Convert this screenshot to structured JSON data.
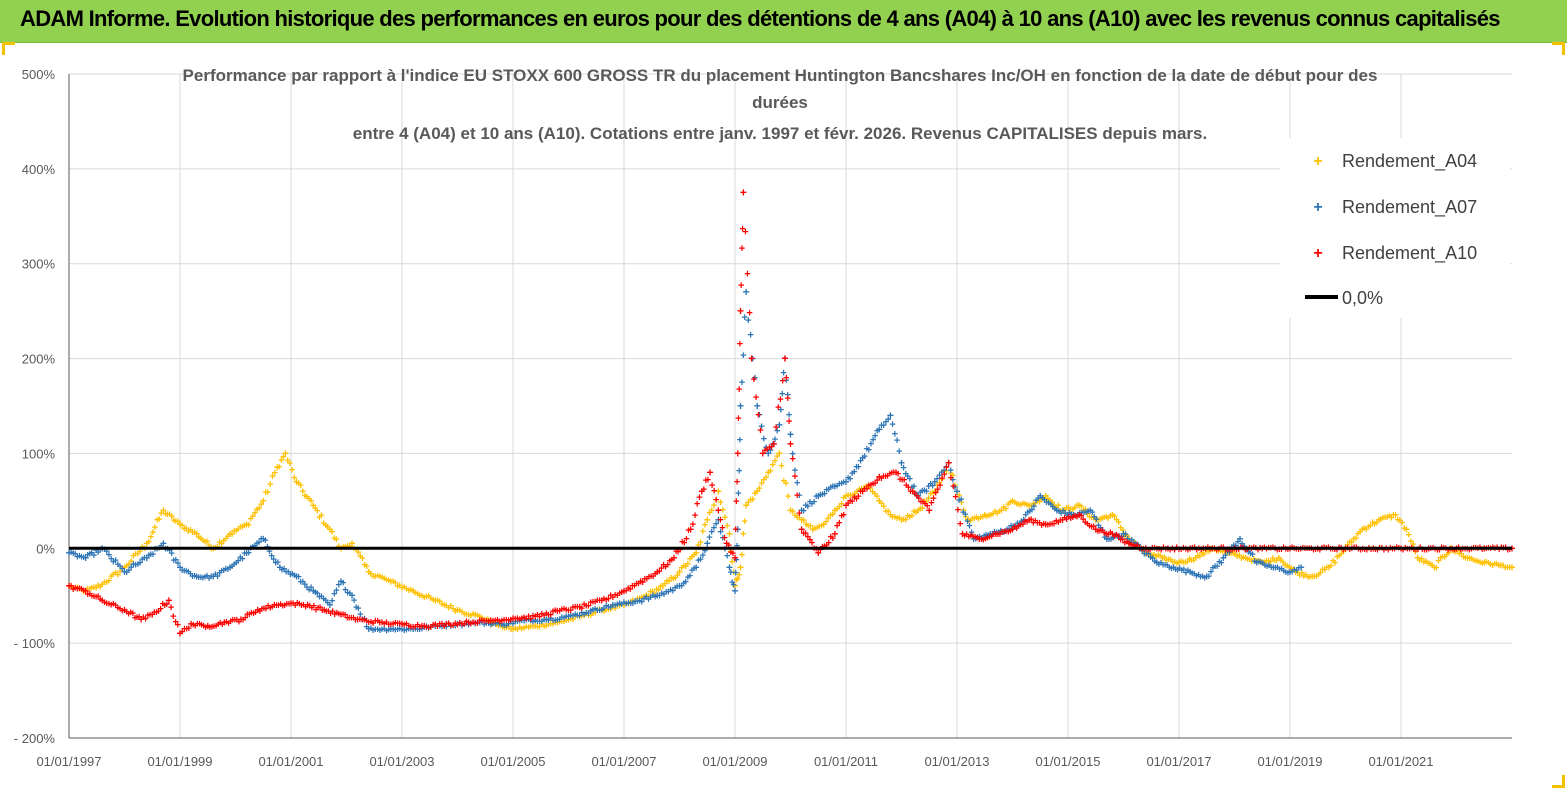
{
  "header": {
    "title": "ADAM Informe. Evolution historique des performances en euros pour des détentions de 4 ans (A04) à 10 ans (A10) avec les revenus connus capitalisés"
  },
  "colors": {
    "header_bg": "#92d050",
    "a04": "#ffc000",
    "a07": "#2e75b6",
    "a10": "#ff0000",
    "zero_line": "#000000",
    "grid": "#d9d9d9"
  },
  "chart_data": {
    "type": "scatter",
    "title_lines": [
      "Performance par rapport à l'indice EU STOXX 600 GROSS TR  du placement Huntington Bancshares Inc/OH en fonction de la date de début pour des",
      "durées",
      "entre 4 (A04) et 10 ans (A10). Cotations entre janv. 1997 et févr. 2026. Revenus CAPITALISES depuis mars."
    ],
    "xlim": [
      1997.0,
      2023.0
    ],
    "ylim": [
      -200,
      500
    ],
    "y_tick_values": [
      -200,
      -100,
      0,
      100,
      200,
      300,
      400,
      500
    ],
    "y_tick_labels": [
      "- 200%",
      "- 100%",
      "0%",
      "100%",
      "200%",
      "300%",
      "400%",
      "500%"
    ],
    "x_tick_values": [
      1997,
      1999,
      2001,
      2003,
      2005,
      2007,
      2009,
      2011,
      2013,
      2015,
      2017,
      2019,
      2021
    ],
    "x_tick_labels": [
      "01/01/1997",
      "01/01/1999",
      "01/01/2001",
      "01/01/2003",
      "01/01/2005",
      "01/01/2007",
      "01/01/2009",
      "01/01/2011",
      "01/01/2013",
      "01/01/2015",
      "01/01/2017",
      "01/01/2019",
      "01/01/2021"
    ],
    "legend": {
      "position": "top-right",
      "entries": [
        "Rendement_A04",
        "Rendement_A07",
        "Rendement_A10",
        "0,0%"
      ]
    },
    "series": [
      {
        "name": "Rendement_A04",
        "color": "#ffc000",
        "x": [
          1997.0,
          1997.3,
          1997.6,
          1998.0,
          1998.4,
          1998.7,
          1999.0,
          1999.3,
          1999.6,
          1999.9,
          2000.2,
          2000.5,
          2000.75,
          2000.9,
          2001.1,
          2001.4,
          2001.7,
          2001.9,
          2002.1,
          2002.4,
          2002.8,
          2003.2,
          2003.6,
          2004.0,
          2004.4,
          2004.7,
          2005.0,
          2005.4,
          2005.8,
          2006.2,
          2006.6,
          2007.0,
          2007.4,
          2007.7,
          2008.0,
          2008.3,
          2008.5,
          2008.7,
          2008.9,
          2009.0,
          2009.1,
          2009.2,
          2009.4,
          2009.6,
          2009.8,
          2010.0,
          2010.2,
          2010.4,
          2010.6,
          2010.8,
          2011.0,
          2011.2,
          2011.4,
          2011.6,
          2011.8,
          2012.0,
          2012.3,
          2012.6,
          2012.85,
          2013.0,
          2013.2,
          2013.5,
          2013.8,
          2014.0,
          2014.3,
          2014.6,
          2014.9,
          2015.2,
          2015.5,
          2015.8,
          2016.1,
          2016.4,
          2016.7,
          2017.0,
          2017.3,
          2017.6,
          2017.9,
          2018.2,
          2018.5,
          2018.8,
          2019.1,
          2019.4,
          2019.7,
          2020.0,
          2020.3,
          2020.6,
          2020.9,
          2021.1,
          2021.3,
          2021.6,
          2021.9,
          2022.2,
          2022.5,
          2022.8,
          2023.0
        ],
        "y": [
          -40,
          -45,
          -38,
          -20,
          5,
          40,
          25,
          15,
          0,
          15,
          25,
          50,
          85,
          100,
          70,
          45,
          20,
          0,
          5,
          -25,
          -35,
          -45,
          -55,
          -65,
          -72,
          -80,
          -85,
          -82,
          -78,
          -72,
          -65,
          -60,
          -50,
          -40,
          -25,
          -5,
          30,
          60,
          15,
          -40,
          -20,
          45,
          60,
          80,
          100,
          40,
          30,
          20,
          25,
          40,
          55,
          60,
          65,
          50,
          35,
          30,
          40,
          60,
          90,
          60,
          30,
          35,
          40,
          50,
          45,
          55,
          40,
          45,
          30,
          35,
          10,
          -5,
          -10,
          -15,
          -10,
          0,
          -5,
          -10,
          -15,
          -10,
          -25,
          -30,
          -20,
          0,
          20,
          30,
          35,
          20,
          -10,
          -20,
          0,
          -10,
          -15,
          -18,
          -20
        ]
      },
      {
        "name": "Rendement_A07",
        "color": "#2e75b6",
        "x": [
          1997.0,
          1997.3,
          1997.6,
          1998.0,
          1998.4,
          1998.7,
          1999.0,
          1999.3,
          1999.6,
          1999.9,
          2000.2,
          2000.5,
          2000.8,
          2001.1,
          2001.4,
          2001.7,
          2001.9,
          2002.1,
          2002.4,
          2002.8,
          2003.2,
          2003.6,
          2004.0,
          2004.4,
          2004.8,
          2005.2,
          2005.6,
          2006.0,
          2006.4,
          2006.8,
          2007.2,
          2007.6,
          2008.0,
          2008.3,
          2008.5,
          2008.7,
          2008.9,
          2009.0,
          2009.05,
          2009.1,
          2009.2,
          2009.4,
          2009.6,
          2009.8,
          2009.9,
          2010.0,
          2010.2,
          2010.5,
          2010.8,
          2011.0,
          2011.3,
          2011.6,
          2011.8,
          2012.0,
          2012.3,
          2012.6,
          2012.85,
          2013.0,
          2013.3,
          2013.6,
          2013.9,
          2014.2,
          2014.5,
          2014.8,
          2015.1,
          2015.4,
          2015.7,
          2016.0,
          2016.3,
          2016.6,
          2016.9,
          2017.2,
          2017.5,
          2017.8,
          2018.1,
          2018.4,
          2018.7,
          2019.0,
          2019.2
        ],
        "y": [
          -5,
          -10,
          0,
          -25,
          -10,
          5,
          -20,
          -30,
          -30,
          -20,
          -5,
          10,
          -20,
          -30,
          -45,
          -60,
          -35,
          -50,
          -85,
          -85,
          -85,
          -82,
          -80,
          -78,
          -80,
          -76,
          -75,
          -72,
          -66,
          -60,
          -56,
          -50,
          -40,
          -20,
          5,
          30,
          -20,
          -45,
          20,
          150,
          270,
          150,
          100,
          130,
          200,
          120,
          40,
          55,
          65,
          70,
          95,
          125,
          140,
          90,
          55,
          70,
          90,
          60,
          10,
          15,
          20,
          30,
          55,
          40,
          35,
          40,
          10,
          15,
          0,
          -15,
          -20,
          -25,
          -30,
          -10,
          10,
          -15,
          -20,
          -25,
          -20
        ]
      },
      {
        "name": "Rendement_A10",
        "color": "#ff0000",
        "x": [
          1997.0,
          1997.3,
          1997.6,
          1998.0,
          1998.3,
          1998.5,
          1998.8,
          1999.0,
          1999.2,
          1999.5,
          1999.8,
          2000.1,
          2000.4,
          2000.7,
          2001.0,
          2001.3,
          2001.6,
          2001.9,
          2002.2,
          2002.6,
          2003.0,
          2003.4,
          2003.8,
          2004.2,
          2004.6,
          2005.0,
          2005.4,
          2005.8,
          2006.2,
          2006.6,
          2007.0,
          2007.3,
          2007.6,
          2007.9,
          2008.2,
          2008.4,
          2008.55,
          2008.7,
          2008.85,
          2009.0,
          2009.05,
          2009.1,
          2009.15,
          2009.3,
          2009.5,
          2009.7,
          2009.9,
          2010.0,
          2010.2,
          2010.5,
          2010.8,
          2011.0,
          2011.3,
          2011.6,
          2011.9,
          2012.2,
          2012.5,
          2012.85,
          2013.1,
          2013.4,
          2013.7,
          2014.0,
          2014.3,
          2014.6,
          2014.9,
          2015.2,
          2015.5,
          2015.8,
          2016.1,
          2016.4,
          2016.8,
          2017.2,
          2017.6,
          2018.0,
          2018.5,
          2019.0,
          2019.5,
          2020.0,
          2020.5,
          2021.0,
          2021.5,
          2022.0,
          2022.5,
          2023.0
        ],
        "y": [
          -40,
          -45,
          -55,
          -65,
          -75,
          -70,
          -55,
          -90,
          -80,
          -82,
          -78,
          -75,
          -65,
          -60,
          -58,
          -60,
          -65,
          -70,
          -75,
          -78,
          -80,
          -82,
          -80,
          -78,
          -76,
          -74,
          -72,
          -66,
          -62,
          -55,
          -45,
          -35,
          -25,
          -10,
          20,
          60,
          80,
          40,
          5,
          -10,
          100,
          250,
          375,
          200,
          100,
          110,
          200,
          110,
          20,
          -5,
          15,
          45,
          60,
          75,
          80,
          60,
          40,
          90,
          15,
          10,
          15,
          20,
          30,
          25,
          30,
          35,
          20,
          15,
          5,
          0,
          0,
          0,
          0,
          0,
          0,
          0,
          0,
          0,
          0,
          0,
          0,
          0,
          0,
          0
        ]
      }
    ]
  }
}
